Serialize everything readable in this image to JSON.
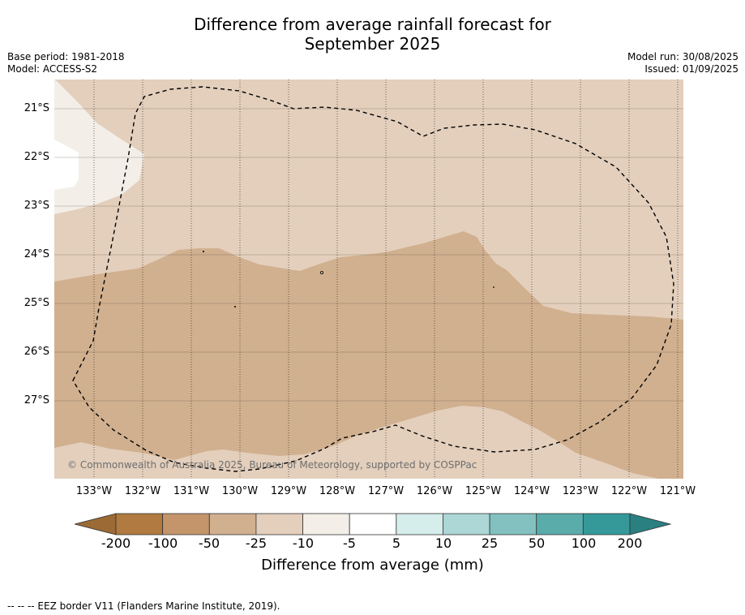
{
  "title_line1": "Difference from average rainfall forecast for",
  "title_line2": "September 2025",
  "base_period": "Base period: 1981-2018",
  "model": "Model: ACCESS-S2",
  "model_run": "Model run: 30/08/2025",
  "issued": "Issued: 01/09/2025",
  "copyright": "© Commonwealth of Australia 2025, Bureau of Meteorology, supported by COSPPac",
  "lat_labels": [
    "21°S",
    "22°S",
    "23°S",
    "24°S",
    "25°S",
    "26°S",
    "27°S"
  ],
  "lon_labels": [
    "133°W",
    "132°W",
    "131°W",
    "130°W",
    "129°W",
    "128°W",
    "127°W",
    "126°W",
    "125°W",
    "124°W",
    "123°W",
    "122°W",
    "121°W"
  ],
  "colorbar": {
    "title": "Difference from average (mm)",
    "labels": [
      "-200",
      "-100",
      "-50",
      "-25",
      "-10",
      "-5",
      "5",
      "10",
      "25",
      "50",
      "100",
      "200"
    ],
    "colors": [
      "#b07a40",
      "#c4956a",
      "#d1b08f",
      "#e3cfbc",
      "#f3efe8",
      "#ffffff",
      "#d5edeb",
      "#acd7d6",
      "#82c1c0",
      "#5aacab",
      "#35999a"
    ],
    "under_color": "#9b6a35",
    "over_color": "#2a7f80"
  },
  "footer": "--  --  -- EEZ border V11 (Flanders Marine Institute, 2019)."
}
